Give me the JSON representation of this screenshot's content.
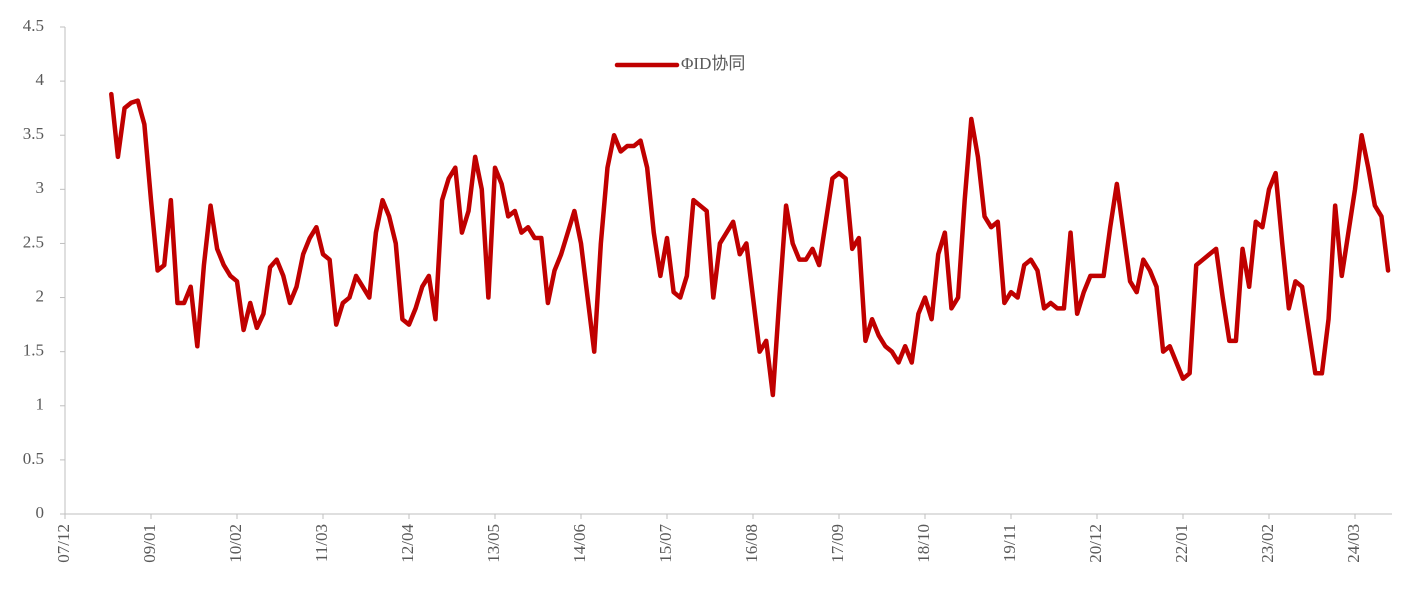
{
  "chart_data": {
    "type": "line",
    "x": [
      "07/12",
      "08/01",
      "08/02",
      "08/03",
      "08/04",
      "08/05",
      "08/06",
      "08/07",
      "08/08",
      "08/09",
      "08/10",
      "08/11",
      "08/12",
      "09/01",
      "09/02",
      "09/03",
      "09/04",
      "09/05",
      "09/06",
      "09/07",
      "09/08",
      "09/09",
      "09/10",
      "09/11",
      "09/12",
      "10/01",
      "10/02",
      "10/03",
      "10/04",
      "10/05",
      "10/06",
      "10/07",
      "10/08",
      "10/09",
      "10/10",
      "10/11",
      "10/12",
      "11/01",
      "11/02",
      "11/03",
      "11/04",
      "11/05",
      "11/06",
      "11/07",
      "11/08",
      "11/09",
      "11/10",
      "11/11",
      "11/12",
      "12/01",
      "12/02",
      "12/03",
      "12/04",
      "12/05",
      "12/06",
      "12/07",
      "12/08",
      "12/09",
      "12/10",
      "12/11",
      "12/12",
      "13/01",
      "13/02",
      "13/03",
      "13/04",
      "13/05",
      "13/06",
      "13/07",
      "13/08",
      "13/09",
      "13/10",
      "13/11",
      "13/12",
      "14/01",
      "14/02",
      "14/03",
      "14/04",
      "14/05",
      "14/06",
      "14/07",
      "14/08",
      "14/09",
      "14/10",
      "14/11",
      "14/12",
      "15/01",
      "15/02",
      "15/03",
      "15/04",
      "15/05",
      "15/06",
      "15/07",
      "15/08",
      "15/09",
      "15/10",
      "15/11",
      "15/12",
      "16/01",
      "16/02",
      "16/03",
      "16/04",
      "16/05",
      "16/06",
      "16/07",
      "16/08",
      "16/09",
      "16/10",
      "16/11",
      "16/12",
      "17/01",
      "17/02",
      "17/03",
      "17/04",
      "17/05",
      "17/06",
      "17/07",
      "17/08",
      "17/09",
      "17/10",
      "17/11",
      "17/12",
      "18/01",
      "18/02",
      "18/03",
      "18/04",
      "18/05",
      "18/06",
      "18/07",
      "18/08",
      "18/09",
      "18/10",
      "18/11",
      "18/12",
      "19/01",
      "19/02",
      "19/03",
      "19/04",
      "19/05",
      "19/06",
      "19/07",
      "19/08",
      "19/09",
      "19/10",
      "19/11",
      "19/12",
      "20/01",
      "20/02",
      "20/03",
      "20/04",
      "20/05",
      "20/06",
      "20/07",
      "20/08",
      "20/09",
      "20/10",
      "20/11",
      "20/12",
      "21/01",
      "21/02",
      "21/03",
      "21/04",
      "21/05",
      "21/06",
      "21/07",
      "21/08",
      "21/09",
      "21/10",
      "21/11",
      "21/12",
      "22/01",
      "22/02",
      "22/03",
      "22/04",
      "22/05",
      "22/06",
      "22/07",
      "22/08",
      "22/09",
      "22/10",
      "22/11",
      "22/12",
      "23/01",
      "23/02",
      "23/03",
      "23/04",
      "23/05",
      "23/06",
      "23/07",
      "23/08",
      "23/09",
      "23/10",
      "23/11",
      "23/12",
      "24/01",
      "24/02",
      "24/03",
      "24/04",
      "24/05",
      "24/06",
      "24/07",
      "24/08"
    ],
    "series": [
      {
        "name": "ΦID协同",
        "color": "#c00000",
        "values": [
          null,
          null,
          null,
          null,
          null,
          null,
          null,
          3.88,
          3.3,
          3.75,
          3.8,
          3.82,
          3.6,
          2.9,
          2.25,
          2.3,
          2.9,
          1.95,
          1.95,
          2.1,
          1.55,
          2.3,
          2.85,
          2.45,
          2.3,
          2.2,
          2.15,
          1.7,
          1.95,
          1.72,
          1.85,
          2.28,
          2.35,
          2.2,
          1.95,
          2.1,
          2.4,
          2.55,
          2.65,
          2.4,
          2.35,
          1.75,
          1.95,
          2.0,
          2.2,
          2.1,
          2.0,
          2.6,
          2.9,
          2.75,
          2.5,
          1.8,
          1.75,
          1.9,
          2.1,
          2.2,
          1.8,
          2.9,
          3.1,
          3.2,
          2.6,
          2.8,
          3.3,
          3.0,
          2.0,
          3.2,
          3.05,
          2.75,
          2.8,
          2.6,
          2.65,
          2.55,
          2.55,
          1.95,
          2.25,
          2.4,
          2.6,
          2.8,
          2.5,
          2.0,
          1.5,
          2.5,
          3.2,
          3.5,
          3.35,
          3.4,
          3.4,
          3.45,
          3.2,
          2.6,
          2.2,
          2.55,
          2.05,
          2.0,
          2.2,
          2.9,
          2.85,
          2.8,
          2.0,
          2.5,
          2.6,
          2.7,
          2.4,
          2.5,
          2.0,
          1.5,
          1.6,
          1.1,
          2.0,
          2.85,
          2.5,
          2.35,
          2.35,
          2.45,
          2.3,
          2.7,
          3.1,
          3.15,
          3.1,
          2.45,
          2.55,
          1.6,
          1.8,
          1.65,
          1.55,
          1.5,
          1.4,
          1.55,
          1.4,
          1.85,
          2.0,
          1.8,
          2.4,
          2.6,
          1.9,
          2.0,
          2.9,
          3.65,
          3.3,
          2.75,
          2.65,
          2.7,
          1.95,
          2.05,
          2.0,
          2.3,
          2.35,
          2.25,
          1.9,
          1.95,
          1.9,
          1.9,
          2.6,
          1.85,
          2.05,
          2.2,
          2.2,
          2.2,
          2.65,
          3.05,
          2.6,
          2.15,
          2.05,
          2.35,
          2.25,
          2.1,
          1.5,
          1.55,
          1.4,
          1.25,
          1.3,
          2.3,
          2.35,
          2.4,
          2.45,
          2.0,
          1.6,
          1.6,
          2.45,
          2.1,
          2.7,
          2.65,
          3.0,
          3.15,
          2.5,
          1.9,
          2.15,
          2.1,
          1.7,
          1.3,
          1.3,
          1.8,
          2.85,
          2.2,
          2.6,
          3.0,
          3.5,
          3.2,
          2.85,
          2.75,
          2.25
        ]
      }
    ],
    "xticks": [
      "07/12",
      "09/01",
      "10/02",
      "11/03",
      "12/04",
      "13/05",
      "14/06",
      "15/07",
      "16/08",
      "17/09",
      "18/10",
      "19/11",
      "20/12",
      "22/01",
      "23/02",
      "24/03"
    ],
    "ylim": [
      0,
      4.5
    ],
    "yticks": [
      0,
      0.5,
      1,
      1.5,
      2,
      2.5,
      3,
      3.5,
      4,
      4.5
    ],
    "grid": false,
    "legend": "top"
  }
}
